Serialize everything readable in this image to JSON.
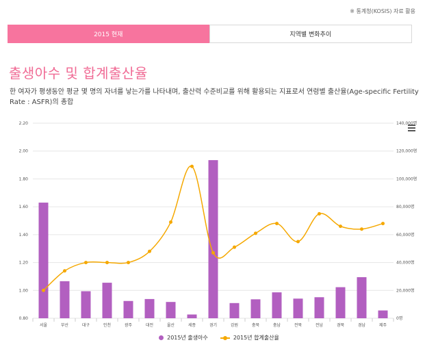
{
  "source_note": "※ 통계청(KOSIS) 자료 활용",
  "tabs": [
    {
      "label": "2015 현재",
      "active": true
    },
    {
      "label": "지역별 변화추이",
      "active": false
    }
  ],
  "heading": "출생아수 및 합계출산율",
  "description": "한 여자가 평생동안 평균 몇 명의 자녀를 낳는가를 나타내며, 출산력 수준비교를 위해 활용되는 지표로서 연령별 출산율(Age-specific Fertility Rate : ASFR)의 총합",
  "colors": {
    "accent": "#f7749e",
    "title": "#f06b95",
    "bar": "#b25fc0",
    "line": "#f5a800"
  },
  "chart_data": {
    "type": "bar",
    "categories": [
      "서울",
      "부산",
      "대구",
      "인천",
      "광주",
      "대전",
      "울산",
      "세종",
      "경기",
      "강원",
      "충북",
      "충남",
      "전북",
      "전남",
      "경북",
      "경남",
      "제주"
    ],
    "series": [
      {
        "name": "2015년 출생아수",
        "type": "bar",
        "axis": "right",
        "values": [
          83000,
          26600,
          19400,
          25500,
          12400,
          13800,
          11700,
          2700,
          113500,
          10900,
          13600,
          18600,
          14100,
          15100,
          22300,
          29500,
          5600
        ]
      },
      {
        "name": "2015년 합계출산율",
        "type": "line",
        "axis": "left",
        "values": [
          1.0,
          1.14,
          1.2,
          1.2,
          1.2,
          1.28,
          1.49,
          1.89,
          1.27,
          1.31,
          1.41,
          1.48,
          1.35,
          1.55,
          1.46,
          1.44,
          1.48
        ]
      }
    ],
    "y_left": {
      "ticks": [
        "2.20",
        "2.00",
        "1.80",
        "1.60",
        "1.40",
        "1.20",
        "1.00",
        "0.80"
      ],
      "range": [
        0.8,
        2.2
      ]
    },
    "y_right": {
      "ticks": [
        "140,000명",
        "120,000명",
        "100,000명",
        "80,000명",
        "60,000명",
        "40,000명",
        "20,000명",
        "0명"
      ],
      "range": [
        0,
        140000
      ]
    },
    "grid": true,
    "legend_position": "bottom"
  }
}
